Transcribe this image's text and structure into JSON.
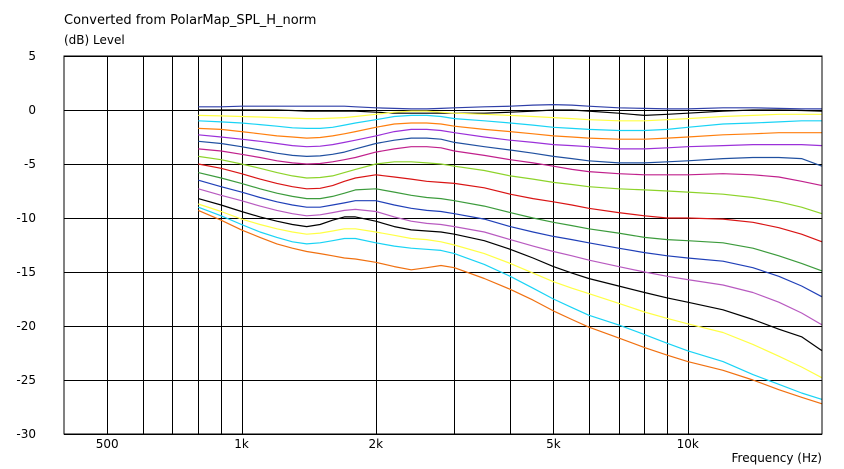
{
  "chart_data": {
    "type": "line",
    "title": "Converted from PolarMap_SPL_H_norm",
    "ylabel": "(dB)  Level",
    "xlabel": "Frequency  (Hz)",
    "x_scale": "log",
    "xlim": [
      400,
      20000
    ],
    "ylim": [
      -30,
      5
    ],
    "grid": true,
    "y_ticks": [
      {
        "value": 5,
        "label": "5"
      },
      {
        "value": 0,
        "label": "0"
      },
      {
        "value": -5,
        "label": "-5"
      },
      {
        "value": -10,
        "label": "-10"
      },
      {
        "value": -15,
        "label": "-15"
      },
      {
        "value": -20,
        "label": "-20"
      },
      {
        "value": -25,
        "label": "-25"
      },
      {
        "value": -30,
        "label": "-30"
      }
    ],
    "x_ticks": [
      {
        "value": 500,
        "label": "500"
      },
      {
        "value": 1000,
        "label": "1k"
      },
      {
        "value": 2000,
        "label": "2k"
      },
      {
        "value": 5000,
        "label": "5k"
      },
      {
        "value": 10000,
        "label": "10k"
      }
    ],
    "x_minor_grid": [
      600,
      700,
      800,
      900,
      3000,
      4000,
      6000,
      7000,
      8000,
      9000
    ],
    "x": [
      800,
      900,
      1000,
      1100,
      1200,
      1300,
      1400,
      1500,
      1600,
      1700,
      1800,
      2000,
      2200,
      2400,
      2600,
      2800,
      3000,
      3500,
      4000,
      4500,
      5000,
      5500,
      6000,
      7000,
      8000,
      9000,
      10000,
      12000,
      14000,
      16000,
      18000,
      20000
    ],
    "series": [
      {
        "color": "#2f3fa8",
        "values": [
          0.3,
          0.3,
          0.35,
          0.35,
          0.35,
          0.35,
          0.35,
          0.35,
          0.35,
          0.35,
          0.3,
          0.2,
          0.15,
          0.1,
          0.1,
          0.15,
          0.2,
          0.3,
          0.35,
          0.45,
          0.5,
          0.45,
          0.35,
          0.2,
          0.15,
          0.1,
          0.1,
          0.2,
          0.2,
          0.15,
          0.1,
          0.1
        ]
      },
      {
        "color": "#000000",
        "values": [
          0.0,
          0.0,
          0.0,
          0.0,
          0.0,
          -0.05,
          -0.1,
          -0.1,
          -0.1,
          -0.1,
          -0.1,
          -0.2,
          -0.3,
          -0.3,
          -0.3,
          -0.3,
          -0.3,
          -0.3,
          -0.2,
          -0.1,
          0.0,
          0.0,
          -0.1,
          -0.3,
          -0.5,
          -0.4,
          -0.3,
          -0.1,
          0.0,
          0.0,
          -0.05,
          -0.1
        ]
      },
      {
        "color": "#ffff44",
        "values": [
          -0.5,
          -0.55,
          -0.6,
          -0.65,
          -0.7,
          -0.75,
          -0.8,
          -0.8,
          -0.75,
          -0.7,
          -0.6,
          -0.4,
          -0.2,
          -0.1,
          -0.1,
          -0.2,
          -0.3,
          -0.4,
          -0.5,
          -0.6,
          -0.7,
          -0.8,
          -0.9,
          -1.0,
          -1.0,
          -0.9,
          -0.8,
          -0.6,
          -0.5,
          -0.4,
          -0.4,
          -0.4
        ]
      },
      {
        "color": "#19d3f5",
        "values": [
          -1.0,
          -1.1,
          -1.2,
          -1.35,
          -1.5,
          -1.65,
          -1.7,
          -1.7,
          -1.6,
          -1.4,
          -1.2,
          -0.9,
          -0.6,
          -0.5,
          -0.5,
          -0.6,
          -0.8,
          -1.0,
          -1.2,
          -1.4,
          -1.6,
          -1.7,
          -1.8,
          -1.9,
          -1.9,
          -1.8,
          -1.6,
          -1.3,
          -1.2,
          -1.1,
          -1.0,
          -1.0
        ]
      },
      {
        "color": "#ff7f0e",
        "values": [
          -1.7,
          -1.8,
          -2.0,
          -2.2,
          -2.4,
          -2.5,
          -2.6,
          -2.55,
          -2.4,
          -2.2,
          -2.0,
          -1.6,
          -1.3,
          -1.2,
          -1.2,
          -1.3,
          -1.5,
          -1.8,
          -2.0,
          -2.2,
          -2.4,
          -2.5,
          -2.6,
          -2.7,
          -2.7,
          -2.6,
          -2.5,
          -2.3,
          -2.2,
          -2.1,
          -2.1,
          -2.1
        ]
      },
      {
        "color": "#9b30d9",
        "values": [
          -2.3,
          -2.5,
          -2.7,
          -2.9,
          -3.1,
          -3.3,
          -3.4,
          -3.35,
          -3.2,
          -3.0,
          -2.8,
          -2.4,
          -2.0,
          -1.8,
          -1.8,
          -1.9,
          -2.1,
          -2.5,
          -2.8,
          -3.0,
          -3.2,
          -3.3,
          -3.4,
          -3.6,
          -3.6,
          -3.5,
          -3.4,
          -3.3,
          -3.2,
          -3.2,
          -3.2,
          -3.3
        ]
      },
      {
        "color": "#2050a0",
        "values": [
          -2.9,
          -3.1,
          -3.4,
          -3.7,
          -4.0,
          -4.2,
          -4.3,
          -4.25,
          -4.1,
          -3.9,
          -3.6,
          -3.1,
          -2.8,
          -2.6,
          -2.6,
          -2.7,
          -3.0,
          -3.4,
          -3.7,
          -4.0,
          -4.3,
          -4.5,
          -4.7,
          -4.9,
          -4.9,
          -4.8,
          -4.7,
          -4.5,
          -4.4,
          -4.4,
          -4.5,
          -5.2
        ]
      },
      {
        "color": "#c0208c",
        "values": [
          -3.6,
          -3.8,
          -4.1,
          -4.4,
          -4.7,
          -4.9,
          -5.0,
          -4.95,
          -4.8,
          -4.6,
          -4.4,
          -3.9,
          -3.6,
          -3.4,
          -3.4,
          -3.5,
          -3.8,
          -4.2,
          -4.6,
          -4.9,
          -5.2,
          -5.5,
          -5.7,
          -5.9,
          -6.0,
          -6.0,
          -6.0,
          -5.9,
          -6.0,
          -6.2,
          -6.6,
          -7.0
        ]
      },
      {
        "color": "#8dd32a",
        "values": [
          -4.3,
          -4.6,
          -5.0,
          -5.4,
          -5.8,
          -6.1,
          -6.3,
          -6.25,
          -6.1,
          -5.8,
          -5.5,
          -5.0,
          -4.8,
          -4.8,
          -4.9,
          -5.0,
          -5.2,
          -5.6,
          -6.1,
          -6.4,
          -6.7,
          -6.9,
          -7.1,
          -7.3,
          -7.4,
          -7.5,
          -7.6,
          -7.8,
          -8.1,
          -8.5,
          -9.0,
          -9.6
        ]
      },
      {
        "color": "#d91414",
        "values": [
          -5.0,
          -5.4,
          -5.9,
          -6.4,
          -6.8,
          -7.1,
          -7.3,
          -7.25,
          -7.0,
          -6.6,
          -6.3,
          -6.0,
          -6.2,
          -6.4,
          -6.6,
          -6.7,
          -6.8,
          -7.2,
          -7.8,
          -8.2,
          -8.5,
          -8.8,
          -9.1,
          -9.5,
          -9.8,
          -10.0,
          -10.0,
          -10.1,
          -10.4,
          -10.9,
          -11.5,
          -12.2
        ]
      },
      {
        "color": "#3c9b3c",
        "values": [
          -5.8,
          -6.3,
          -6.8,
          -7.3,
          -7.7,
          -8.0,
          -8.2,
          -8.2,
          -8.0,
          -7.7,
          -7.4,
          -7.3,
          -7.6,
          -7.9,
          -8.1,
          -8.2,
          -8.4,
          -8.9,
          -9.5,
          -10.0,
          -10.4,
          -10.7,
          -11.0,
          -11.4,
          -11.8,
          -12.0,
          -12.1,
          -12.3,
          -12.8,
          -13.5,
          -14.2,
          -14.9
        ]
      },
      {
        "color": "#2040b8",
        "values": [
          -6.5,
          -7.1,
          -7.6,
          -8.1,
          -8.5,
          -8.8,
          -9.0,
          -9.0,
          -8.8,
          -8.6,
          -8.4,
          -8.4,
          -8.8,
          -9.1,
          -9.3,
          -9.4,
          -9.6,
          -10.1,
          -10.8,
          -11.3,
          -11.7,
          -12.0,
          -12.3,
          -12.8,
          -13.2,
          -13.5,
          -13.7,
          -14.0,
          -14.6,
          -15.4,
          -16.3,
          -17.3
        ]
      },
      {
        "color": "#b85ac0",
        "values": [
          -7.3,
          -7.9,
          -8.4,
          -8.9,
          -9.3,
          -9.6,
          -9.8,
          -9.7,
          -9.5,
          -9.3,
          -9.2,
          -9.4,
          -9.9,
          -10.3,
          -10.5,
          -10.6,
          -10.8,
          -11.3,
          -12.0,
          -12.6,
          -13.1,
          -13.5,
          -13.9,
          -14.5,
          -15.0,
          -15.4,
          -15.7,
          -16.2,
          -16.9,
          -17.8,
          -18.8,
          -19.9
        ]
      },
      {
        "color": "#000000",
        "values": [
          -8.2,
          -8.8,
          -9.4,
          -9.9,
          -10.3,
          -10.6,
          -10.8,
          -10.6,
          -10.2,
          -9.9,
          -9.9,
          -10.3,
          -10.8,
          -11.1,
          -11.2,
          -11.3,
          -11.5,
          -12.1,
          -12.9,
          -13.7,
          -14.5,
          -15.1,
          -15.6,
          -16.3,
          -16.9,
          -17.4,
          -17.8,
          -18.5,
          -19.4,
          -20.3,
          -21.0,
          -22.3
        ]
      },
      {
        "color": "#ffff44",
        "values": [
          -8.7,
          -9.4,
          -10.1,
          -10.6,
          -11.0,
          -11.3,
          -11.5,
          -11.4,
          -11.2,
          -11.0,
          -11.0,
          -11.3,
          -11.6,
          -11.9,
          -12.0,
          -12.2,
          -12.5,
          -13.3,
          -14.2,
          -15.1,
          -15.9,
          -16.5,
          -17.0,
          -17.9,
          -18.7,
          -19.3,
          -19.8,
          -20.6,
          -21.7,
          -22.8,
          -23.8,
          -24.8
        ]
      },
      {
        "color": "#19d3f5",
        "values": [
          -9.0,
          -9.8,
          -10.6,
          -11.3,
          -11.8,
          -12.2,
          -12.4,
          -12.3,
          -12.1,
          -11.9,
          -11.9,
          -12.3,
          -12.6,
          -12.8,
          -12.9,
          -13.0,
          -13.3,
          -14.3,
          -15.4,
          -16.5,
          -17.5,
          -18.3,
          -19.0,
          -19.9,
          -20.8,
          -21.6,
          -22.3,
          -23.3,
          -24.5,
          -25.4,
          -26.2,
          -26.8
        ]
      },
      {
        "color": "#f07010",
        "values": [
          -9.3,
          -10.2,
          -11.1,
          -11.8,
          -12.4,
          -12.8,
          -13.1,
          -13.3,
          -13.5,
          -13.7,
          -13.8,
          -14.1,
          -14.5,
          -14.8,
          -14.6,
          -14.4,
          -14.6,
          -15.6,
          -16.6,
          -17.6,
          -18.6,
          -19.4,
          -20.1,
          -21.1,
          -22.0,
          -22.7,
          -23.3,
          -24.1,
          -25.0,
          -25.9,
          -26.6,
          -27.2
        ]
      }
    ]
  }
}
